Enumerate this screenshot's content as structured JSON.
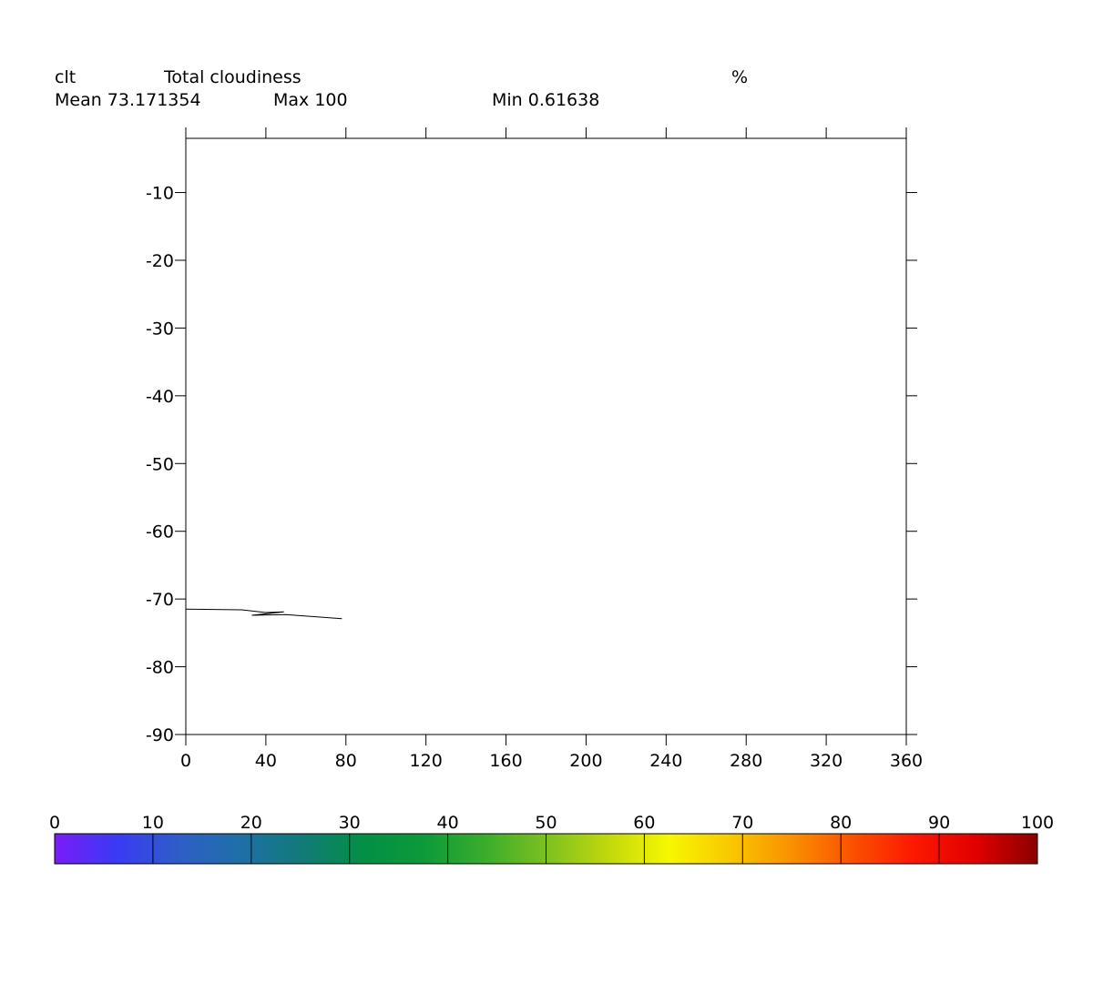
{
  "header": {
    "variable": "clt",
    "long_name": "Total cloudiness",
    "units": "%",
    "mean_text": "Mean 73.171354",
    "max_text": "Max 100",
    "min_text": "Min 0.61638"
  },
  "chart_data": {
    "type": "line",
    "title": "Total cloudiness",
    "xlabel": "",
    "ylabel": "",
    "xlim": [
      0,
      360
    ],
    "ylim": [
      -90,
      -2
    ],
    "x_ticks": [
      0,
      40,
      80,
      120,
      160,
      200,
      240,
      280,
      320,
      360
    ],
    "y_ticks": [
      -10,
      -20,
      -30,
      -40,
      -50,
      -60,
      -70,
      -80,
      -90
    ],
    "grid": false,
    "series": [
      {
        "values": [
          [
            0,
            -71.5
          ],
          [
            28,
            -71.6
          ],
          [
            40,
            -72.0
          ],
          [
            49,
            -71.9
          ],
          [
            33,
            -72.4
          ],
          [
            50,
            -72.3
          ],
          [
            78,
            -72.9
          ]
        ]
      }
    ],
    "colorbar": {
      "min": 0,
      "max": 100,
      "labels": [
        "0",
        "10",
        "20",
        "30",
        "40",
        "50",
        "60",
        "70",
        "80",
        "90",
        "100"
      ],
      "colors": [
        "#7a1cf7",
        "#3a3af5",
        "#2f5dc8",
        "#1f6fa8",
        "#127a7a",
        "#038f45",
        "#0c9a3a",
        "#3aac2c",
        "#7cc020",
        "#c0d80c",
        "#f7f700",
        "#f9c800",
        "#f99000",
        "#fb5000",
        "#fc1800",
        "#e00000",
        "#8b0000"
      ]
    }
  }
}
